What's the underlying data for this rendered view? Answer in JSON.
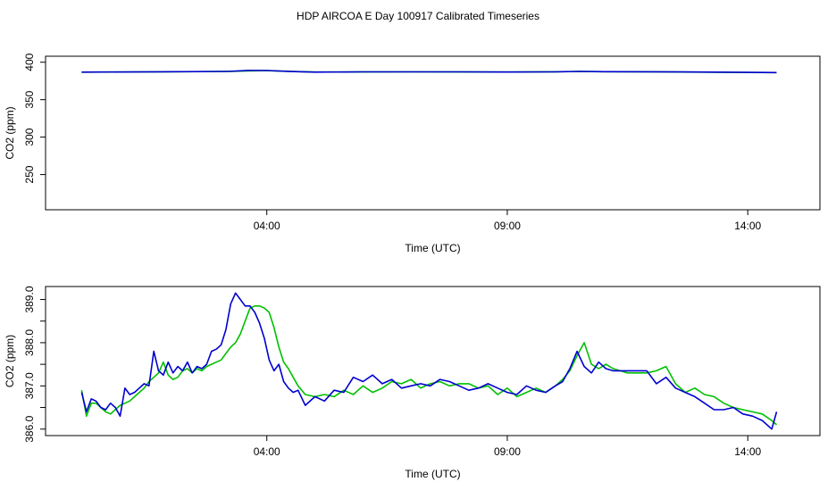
{
  "chart_title": "HDP AIRCOA E  Day 100917  Calibrated Timeseries",
  "colors": {
    "series_a": "#00c000",
    "series_b": "#0000d0",
    "frame": "#000000"
  },
  "chart_data": [
    {
      "type": "line",
      "title": "",
      "xlabel": "Time (UTC)",
      "ylabel": "CO2 (ppm)",
      "xlim": [
        -0.6,
        15.5
      ],
      "ylim": [
        203,
        408
      ],
      "x_ticks": [
        4,
        9,
        14
      ],
      "x_tick_labels": [
        "04:00",
        "09:00",
        "14:00"
      ],
      "y_ticks": [
        250,
        300,
        350,
        400
      ],
      "y_tick_labels": [
        "250",
        "300",
        "350",
        "400"
      ],
      "grid": false,
      "legend": "none",
      "series": [
        {
          "x": [
            0.15,
            1.8,
            3.2,
            3.6,
            4.0,
            4.5,
            5.0,
            6.0,
            7.0,
            8.0,
            9.0,
            10.0,
            10.5,
            11.0,
            12.0,
            13.0,
            14.0,
            14.6
          ],
          "values": [
            386.8,
            387.2,
            387.6,
            388.5,
            388.8,
            387.6,
            386.9,
            387.0,
            387.1,
            387.0,
            386.9,
            387.3,
            387.6,
            387.4,
            387.3,
            386.8,
            386.3,
            386.2
          ]
        },
        {
          "x": [
            0.15,
            1.8,
            3.2,
            3.6,
            4.0,
            4.5,
            5.0,
            6.0,
            7.0,
            8.0,
            9.0,
            10.0,
            10.5,
            11.0,
            12.0,
            13.0,
            14.0,
            14.6
          ],
          "values": [
            386.8,
            387.3,
            387.7,
            389.1,
            388.9,
            387.6,
            386.8,
            387.1,
            387.1,
            387.1,
            386.9,
            387.2,
            387.7,
            387.4,
            387.3,
            386.9,
            386.4,
            386.2
          ]
        }
      ]
    },
    {
      "type": "line",
      "title": "",
      "xlabel": "Time (UTC)",
      "ylabel": "CO2 (ppm)",
      "xlim": [
        -0.6,
        15.5
      ],
      "ylim": [
        385.85,
        389.3
      ],
      "x_ticks": [
        4,
        9,
        14
      ],
      "x_tick_labels": [
        "04:00",
        "09:00",
        "14:00"
      ],
      "y_ticks": [
        386.0,
        386.5,
        387.0,
        387.5,
        388.0,
        388.5,
        389.0
      ],
      "y_tick_labels": [
        "386.0",
        "",
        "387.0",
        "",
        "388.0",
        "",
        "389.0"
      ],
      "grid": false,
      "legend": "none",
      "series": [
        {
          "x": [
            0.15,
            0.25,
            0.35,
            0.45,
            0.55,
            0.65,
            0.75,
            0.85,
            0.95,
            1.05,
            1.15,
            1.25,
            1.35,
            1.45,
            1.55,
            1.65,
            1.75,
            1.85,
            1.95,
            2.05,
            2.15,
            2.25,
            2.35,
            2.45,
            2.55,
            2.65,
            2.75,
            2.85,
            2.95,
            3.05,
            3.15,
            3.25,
            3.35,
            3.45,
            3.55,
            3.65,
            3.75,
            3.85,
            3.95,
            4.05,
            4.15,
            4.25,
            4.35,
            4.45,
            4.55,
            4.65,
            4.8,
            5.0,
            5.2,
            5.4,
            5.6,
            5.8,
            6.0,
            6.2,
            6.4,
            6.6,
            6.8,
            7.0,
            7.2,
            7.4,
            7.6,
            7.8,
            8.0,
            8.2,
            8.4,
            8.6,
            8.8,
            9.0,
            9.2,
            9.4,
            9.6,
            9.8,
            10.0,
            10.15,
            10.3,
            10.45,
            10.6,
            10.75,
            10.9,
            11.05,
            11.2,
            11.35,
            11.5,
            11.7,
            11.9,
            12.1,
            12.3,
            12.5,
            12.7,
            12.9,
            13.1,
            13.3,
            13.5,
            13.7,
            13.9,
            14.1,
            14.3,
            14.5,
            14.6
          ],
          "values": [
            386.9,
            386.3,
            386.6,
            386.6,
            386.5,
            386.4,
            386.35,
            386.45,
            386.55,
            386.6,
            386.65,
            386.75,
            386.85,
            386.95,
            387.1,
            387.2,
            387.3,
            387.55,
            387.25,
            387.15,
            387.2,
            387.35,
            387.4,
            387.3,
            387.4,
            387.35,
            387.45,
            387.5,
            387.55,
            387.6,
            387.75,
            387.9,
            388.0,
            388.2,
            388.5,
            388.8,
            388.85,
            388.85,
            388.8,
            388.7,
            388.35,
            387.9,
            387.55,
            387.4,
            387.2,
            387.0,
            386.8,
            386.75,
            386.8,
            386.75,
            386.9,
            386.8,
            387.0,
            386.85,
            386.95,
            387.1,
            387.05,
            387.15,
            386.95,
            387.05,
            387.1,
            387.0,
            387.05,
            387.05,
            386.95,
            387.0,
            386.8,
            386.95,
            386.75,
            386.85,
            386.95,
            386.85,
            387.0,
            387.15,
            387.35,
            387.7,
            388.0,
            387.5,
            387.4,
            387.5,
            387.4,
            387.35,
            387.3,
            387.3,
            387.3,
            387.35,
            387.45,
            387.05,
            386.85,
            386.95,
            386.8,
            386.75,
            386.6,
            386.5,
            386.45,
            386.4,
            386.35,
            386.2,
            386.1
          ]
        },
        {
          "x": [
            0.15,
            0.25,
            0.35,
            0.45,
            0.55,
            0.65,
            0.75,
            0.85,
            0.95,
            1.05,
            1.15,
            1.25,
            1.35,
            1.45,
            1.55,
            1.65,
            1.75,
            1.85,
            1.95,
            2.05,
            2.15,
            2.25,
            2.35,
            2.45,
            2.55,
            2.65,
            2.75,
            2.85,
            2.95,
            3.05,
            3.15,
            3.25,
            3.35,
            3.45,
            3.55,
            3.65,
            3.75,
            3.85,
            3.95,
            4.05,
            4.15,
            4.25,
            4.35,
            4.45,
            4.55,
            4.65,
            4.8,
            5.0,
            5.2,
            5.4,
            5.6,
            5.8,
            6.0,
            6.2,
            6.4,
            6.6,
            6.8,
            7.0,
            7.2,
            7.4,
            7.6,
            7.8,
            8.0,
            8.2,
            8.4,
            8.6,
            8.8,
            9.0,
            9.2,
            9.4,
            9.6,
            9.8,
            10.0,
            10.15,
            10.3,
            10.45,
            10.6,
            10.75,
            10.9,
            11.05,
            11.2,
            11.35,
            11.5,
            11.7,
            11.9,
            12.1,
            12.3,
            12.5,
            12.7,
            12.9,
            13.1,
            13.3,
            13.5,
            13.7,
            13.9,
            14.1,
            14.3,
            14.5,
            14.6
          ],
          "values": [
            386.85,
            386.4,
            386.7,
            386.65,
            386.5,
            386.45,
            386.6,
            386.5,
            386.3,
            386.95,
            386.8,
            386.85,
            386.95,
            387.05,
            387.0,
            387.8,
            387.35,
            387.25,
            387.55,
            387.3,
            387.45,
            387.35,
            387.55,
            387.3,
            387.45,
            387.4,
            387.5,
            387.8,
            387.85,
            387.95,
            388.3,
            388.9,
            389.15,
            389.0,
            388.85,
            388.85,
            388.7,
            388.45,
            388.1,
            387.6,
            387.35,
            387.5,
            387.1,
            386.95,
            386.85,
            386.9,
            386.55,
            386.75,
            386.65,
            386.9,
            386.85,
            387.2,
            387.1,
            387.25,
            387.05,
            387.15,
            386.95,
            387.0,
            387.05,
            387.0,
            387.15,
            387.1,
            387.0,
            386.9,
            386.95,
            387.05,
            386.95,
            386.85,
            386.8,
            387.0,
            386.9,
            386.85,
            387.0,
            387.1,
            387.4,
            387.8,
            387.45,
            387.3,
            387.55,
            387.4,
            387.35,
            387.35,
            387.35,
            387.35,
            387.35,
            387.05,
            387.2,
            386.95,
            386.85,
            386.75,
            386.6,
            386.45,
            386.45,
            386.5,
            386.35,
            386.3,
            386.2,
            386.0,
            386.4
          ]
        }
      ]
    }
  ]
}
